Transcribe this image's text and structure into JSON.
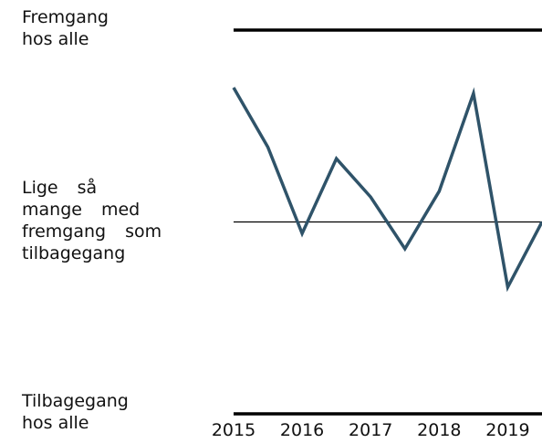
{
  "chart_data": {
    "type": "line",
    "x": [
      2015,
      2015.5,
      2016,
      2016.5,
      2017,
      2017.5,
      2018,
      2018.5,
      2019,
      2019.5
    ],
    "series": [
      {
        "color": "#2f5369",
        "values": [
          70,
          39,
          -6,
          33,
          13,
          -14,
          16,
          67,
          -34,
          0
        ]
      }
    ],
    "xlim": [
      2015,
      2019.5
    ],
    "xticks": [
      2015,
      2016,
      2017,
      2018,
      2019
    ],
    "ylim": [
      -100,
      100
    ],
    "yticks": [
      {
        "value": 100,
        "label": "Fremgang hos alle"
      },
      {
        "value": 0,
        "label": "Lige så mange med fremgang som tilbagegang"
      },
      {
        "value": -100,
        "label": "Tilbagegang hos alle"
      }
    ]
  }
}
